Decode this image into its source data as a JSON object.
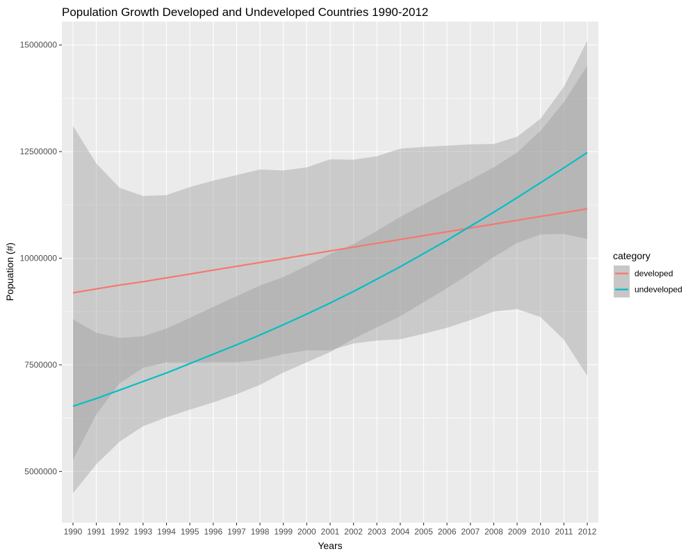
{
  "chart_data": {
    "type": "line",
    "title": "Population Growth Developed and Undeveloped Countries 1990-2012",
    "xlabel": "Years",
    "ylabel": "Popuation (#)",
    "ylim": [
      3800000,
      15550000
    ],
    "yticks": [
      5000000,
      7500000,
      10000000,
      12500000,
      15000000
    ],
    "ytick_labels": [
      "5000000",
      "7500000",
      "10000000",
      "12500000",
      "15000000"
    ],
    "x": [
      1990,
      1991,
      1992,
      1993,
      1994,
      1995,
      1996,
      1997,
      1998,
      1999,
      2000,
      2001,
      2002,
      2003,
      2004,
      2005,
      2006,
      2007,
      2008,
      2009,
      2010,
      2011,
      2012
    ],
    "x_labels": [
      "1990",
      "1991",
      "1992",
      "1993",
      "1994",
      "1995",
      "1996",
      "1997",
      "1998",
      "1999",
      "2000",
      "2001",
      "2002",
      "2003",
      "2004",
      "2005",
      "2006",
      "2007",
      "2008",
      "2009",
      "2010",
      "2011",
      "2012"
    ],
    "grid": true,
    "legend": {
      "title": "category",
      "position": "right"
    },
    "series": [
      {
        "name": "developed",
        "color": "#F8766D",
        "values": [
          9190000,
          9280000,
          9370000,
          9450000,
          9540000,
          9630000,
          9720000,
          9810000,
          9900000,
          9990000,
          10080000,
          10170000,
          10260000,
          10350000,
          10440000,
          10530000,
          10620000,
          10710000,
          10800000,
          10890000,
          10980000,
          11070000,
          11160000
        ],
        "ribbon_upper": [
          13100000,
          12220000,
          11650000,
          11460000,
          11480000,
          11670000,
          11820000,
          11950000,
          12080000,
          12060000,
          12130000,
          12320000,
          12310000,
          12390000,
          12570000,
          12610000,
          12640000,
          12670000,
          12680000,
          12850000,
          13270000,
          14020000,
          15100000
        ],
        "ribbon_lower": [
          5270000,
          6340000,
          7070000,
          7430000,
          7560000,
          7550000,
          7560000,
          7560000,
          7620000,
          7750000,
          7840000,
          7840000,
          8000000,
          8070000,
          8100000,
          8230000,
          8370000,
          8550000,
          8750000,
          8810000,
          8620000,
          8090000,
          7240000
        ]
      },
      {
        "name": "undeveloped",
        "color": "#00BFC4",
        "values": [
          6530000,
          6710000,
          6910000,
          7110000,
          7310000,
          7530000,
          7750000,
          7970000,
          8200000,
          8440000,
          8690000,
          8950000,
          9220000,
          9510000,
          9800000,
          10110000,
          10420000,
          10750000,
          11080000,
          11420000,
          11770000,
          12120000,
          12480000
        ],
        "ribbon_upper": [
          8570000,
          8250000,
          8130000,
          8170000,
          8350000,
          8600000,
          8860000,
          9110000,
          9360000,
          9560000,
          9820000,
          10100000,
          10330000,
          10640000,
          10970000,
          11260000,
          11550000,
          11840000,
          12130000,
          12480000,
          12990000,
          13660000,
          14520000
        ],
        "ribbon_lower": [
          4490000,
          5170000,
          5700000,
          6060000,
          6270000,
          6450000,
          6620000,
          6810000,
          7030000,
          7320000,
          7560000,
          7800000,
          8110000,
          8380000,
          8640000,
          8970000,
          9300000,
          9650000,
          10030000,
          10360000,
          10560000,
          10570000,
          10450000
        ]
      }
    ]
  }
}
